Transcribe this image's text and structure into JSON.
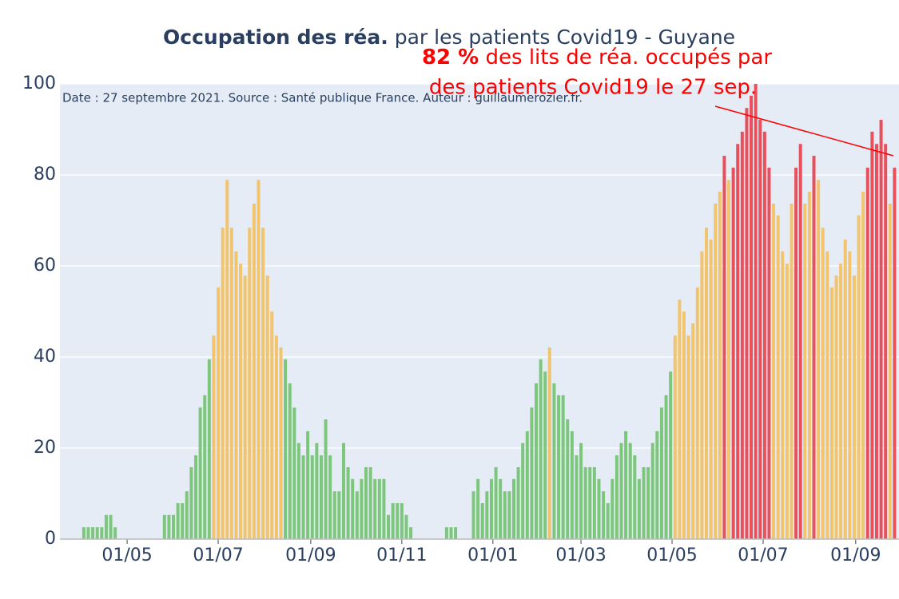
{
  "chart_data": {
    "type": "bar",
    "title": {
      "bold": "Occupation des réa.",
      "rest": "par les patients Covid19 - Guyane"
    },
    "subtitle": "Date : 27 septembre 2021. Source : Santé publique France. Auteur : guillaumerozier.fr.",
    "annotation": {
      "bold": "82  %",
      "line1": "des lits de réa. occupés par",
      "line2": "des patients Covid19 le 27 sep."
    },
    "x": [
      "2020-03-18",
      "2020-03-21",
      "2020-03-24",
      "2020-03-27",
      "2020-03-30",
      "2020-04-02",
      "2020-04-05",
      "2020-04-08",
      "2020-04-11",
      "2020-04-14",
      "2020-04-17",
      "2020-04-20",
      "2020-04-23",
      "2020-04-26",
      "2020-04-29",
      "2020-05-02",
      "2020-05-05",
      "2020-05-08",
      "2020-05-11",
      "2020-05-14",
      "2020-05-17",
      "2020-05-20",
      "2020-05-23",
      "2020-05-26",
      "2020-05-29",
      "2020-06-01",
      "2020-06-04",
      "2020-06-07",
      "2020-06-10",
      "2020-06-13",
      "2020-06-16",
      "2020-06-19",
      "2020-06-22",
      "2020-06-25",
      "2020-06-28",
      "2020-07-01",
      "2020-07-04",
      "2020-07-07",
      "2020-07-10",
      "2020-07-13",
      "2020-07-16",
      "2020-07-19",
      "2020-07-22",
      "2020-07-25",
      "2020-07-28",
      "2020-07-31",
      "2020-08-03",
      "2020-08-06",
      "2020-08-09",
      "2020-08-12",
      "2020-08-15",
      "2020-08-18",
      "2020-08-21",
      "2020-08-24",
      "2020-08-27",
      "2020-08-30",
      "2020-09-02",
      "2020-09-05",
      "2020-09-08",
      "2020-09-11",
      "2020-09-14",
      "2020-09-17",
      "2020-09-20",
      "2020-09-23",
      "2020-09-26",
      "2020-09-29",
      "2020-10-02",
      "2020-10-05",
      "2020-10-08",
      "2020-10-11",
      "2020-10-14",
      "2020-10-17",
      "2020-10-20",
      "2020-10-23",
      "2020-10-26",
      "2020-10-29",
      "2020-11-01",
      "2020-11-04",
      "2020-11-07",
      "2020-11-10",
      "2020-11-13",
      "2020-11-16",
      "2020-11-19",
      "2020-11-22",
      "2020-11-25",
      "2020-11-28",
      "2020-12-01",
      "2020-12-04",
      "2020-12-07",
      "2020-12-10",
      "2020-12-13",
      "2020-12-16",
      "2020-12-19",
      "2020-12-22",
      "2020-12-25",
      "2020-12-28",
      "2020-12-31",
      "2021-01-03",
      "2021-01-06",
      "2021-01-09",
      "2021-01-12",
      "2021-01-15",
      "2021-01-18",
      "2021-01-21",
      "2021-01-24",
      "2021-01-27",
      "2021-01-30",
      "2021-02-02",
      "2021-02-05",
      "2021-02-08",
      "2021-02-11",
      "2021-02-14",
      "2021-02-17",
      "2021-02-20",
      "2021-02-23",
      "2021-02-26",
      "2021-03-01",
      "2021-03-04",
      "2021-03-07",
      "2021-03-10",
      "2021-03-13",
      "2021-03-16",
      "2021-03-19",
      "2021-03-22",
      "2021-03-25",
      "2021-03-28",
      "2021-03-31",
      "2021-04-03",
      "2021-04-06",
      "2021-04-09",
      "2021-04-12",
      "2021-04-15",
      "2021-04-18",
      "2021-04-21",
      "2021-04-24",
      "2021-04-27",
      "2021-04-30",
      "2021-05-03",
      "2021-05-06",
      "2021-05-09",
      "2021-05-12",
      "2021-05-15",
      "2021-05-18",
      "2021-05-21",
      "2021-05-24",
      "2021-05-27",
      "2021-05-30",
      "2021-06-02",
      "2021-06-05",
      "2021-06-08",
      "2021-06-11",
      "2021-06-14",
      "2021-06-17",
      "2021-06-20",
      "2021-06-23",
      "2021-06-26",
      "2021-06-29",
      "2021-07-02",
      "2021-07-05",
      "2021-07-08",
      "2021-07-11",
      "2021-07-14",
      "2021-07-17",
      "2021-07-20",
      "2021-07-23",
      "2021-07-26",
      "2021-07-29",
      "2021-08-01",
      "2021-08-04",
      "2021-08-07",
      "2021-08-10",
      "2021-08-13",
      "2021-08-16",
      "2021-08-19",
      "2021-08-22",
      "2021-08-25",
      "2021-08-28",
      "2021-08-31",
      "2021-09-03",
      "2021-09-06",
      "2021-09-09",
      "2021-09-12",
      "2021-09-15",
      "2021-09-18",
      "2021-09-21",
      "2021-09-24",
      "2021-09-27"
    ],
    "values": [
      0,
      0,
      0,
      0,
      0,
      2.6,
      2.6,
      2.6,
      2.6,
      2.6,
      5.3,
      5.3,
      2.6,
      0,
      0,
      0,
      0,
      0,
      0,
      0,
      0,
      0,
      0,
      5.3,
      5.3,
      5.3,
      7.9,
      7.9,
      10.5,
      15.8,
      18.4,
      28.9,
      31.6,
      39.5,
      44.7,
      55.3,
      68.4,
      78.9,
      68.4,
      63.2,
      60.5,
      57.9,
      68.4,
      73.7,
      78.9,
      68.4,
      57.9,
      50,
      44.7,
      42.1,
      39.5,
      34.2,
      28.9,
      21.1,
      18.4,
      23.7,
      18.4,
      21.1,
      18.4,
      26.3,
      18.4,
      10.5,
      10.5,
      21.1,
      15.8,
      13.2,
      10.5,
      13.2,
      15.8,
      15.8,
      13.2,
      13.2,
      13.2,
      5.3,
      7.9,
      7.9,
      7.9,
      5.3,
      2.6,
      0,
      0,
      0,
      0,
      0,
      0,
      0,
      2.6,
      2.6,
      2.6,
      0,
      0,
      0,
      10.5,
      13.2,
      7.9,
      10.5,
      13.2,
      15.8,
      13.2,
      10.5,
      10.5,
      13.2,
      15.8,
      21.1,
      23.7,
      28.9,
      34.2,
      39.5,
      36.8,
      42.1,
      34.2,
      31.6,
      31.6,
      26.3,
      23.7,
      18.4,
      21.1,
      15.8,
      15.8,
      15.8,
      13.2,
      10.5,
      7.9,
      13.2,
      18.4,
      21.1,
      23.7,
      21.1,
      18.4,
      13.2,
      15.8,
      15.8,
      21.1,
      23.7,
      28.9,
      31.6,
      36.8,
      44.7,
      52.6,
      50,
      44.7,
      47.4,
      55.3,
      63.2,
      68.4,
      65.8,
      73.7,
      76.3,
      84.2,
      78.9,
      81.6,
      86.8,
      89.5,
      94.7,
      97.4,
      100,
      92.1,
      89.5,
      81.6,
      73.7,
      71.1,
      63.2,
      60.5,
      73.7,
      81.6,
      86.8,
      73.7,
      76.3,
      84.2,
      78.9,
      68.4,
      63.2,
      55.3,
      57.9,
      60.5,
      65.8,
      63.2,
      57.9,
      71.1,
      76.3,
      81.6,
      89.5,
      86.8,
      92.1,
      86.8,
      73.7,
      81.6
    ],
    "colors": [
      "#7cc77c",
      "#f2c46d",
      "#e8505b"
    ],
    "color_breaks": [
      40,
      80
    ],
    "xlim": [
      "2020-03-17",
      "2021-09-30"
    ],
    "xticks": [
      {
        "value": "2020-05-01",
        "label": "01/05"
      },
      {
        "value": "2020-07-01",
        "label": "01/07"
      },
      {
        "value": "2020-09-01",
        "label": "01/09"
      },
      {
        "value": "2020-11-01",
        "label": "01/11"
      },
      {
        "value": "2021-01-01",
        "label": "01/01"
      },
      {
        "value": "2021-03-01",
        "label": "01/03"
      },
      {
        "value": "2021-05-01",
        "label": "01/05"
      },
      {
        "value": "2021-07-01",
        "label": "01/07"
      },
      {
        "value": "2021-09-01",
        "label": "01/09"
      }
    ],
    "ylim": [
      0,
      100
    ],
    "yticks": [
      0,
      20,
      40,
      60,
      80,
      100
    ],
    "grid": true
  }
}
